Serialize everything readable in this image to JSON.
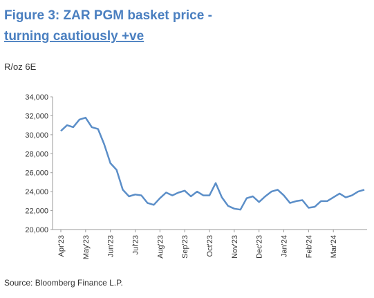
{
  "chart_data": {
    "type": "line",
    "title": "Figure 3: ZAR PGM basket price -",
    "title_emphasis": "turning cautiously +ve",
    "y_label": "R/oz 6E",
    "source": "Source: Bloomberg Finance L.P.",
    "categories": [
      "Apr'23",
      null,
      null,
      null,
      "May'23",
      null,
      null,
      null,
      "Jun'23",
      null,
      null,
      null,
      "Jul'23",
      null,
      null,
      null,
      "Aug'23",
      null,
      null,
      null,
      "Sep'23",
      null,
      null,
      null,
      "Oct'23",
      null,
      null,
      null,
      "Nov'23",
      null,
      null,
      null,
      "Dec'23",
      null,
      null,
      null,
      "Jan'24",
      null,
      null,
      null,
      "Feb'24",
      null,
      null,
      null,
      "Mar'24",
      null,
      null,
      null,
      null,
      null
    ],
    "series": [
      {
        "name": "ZAR PGM basket price",
        "color": "#5b8ec8",
        "values": [
          30400,
          31000,
          30800,
          31600,
          31800,
          30800,
          30600,
          29000,
          27000,
          26300,
          24200,
          23500,
          23700,
          23600,
          22800,
          22600,
          23300,
          23900,
          23600,
          23900,
          24100,
          23500,
          24000,
          23600,
          23600,
          24900,
          23400,
          22500,
          22200,
          22100,
          23300,
          23500,
          22900,
          23500,
          24000,
          24200,
          23600,
          22800,
          23000,
          23100,
          22300,
          22400,
          23000,
          23000,
          23400,
          23800,
          23400,
          23600,
          24000,
          24200
        ]
      }
    ],
    "ylim": [
      20000,
      34000
    ],
    "yticks": [
      {
        "value": 20000,
        "label": "20,000"
      },
      {
        "value": 22000,
        "label": "22,000"
      },
      {
        "value": 24000,
        "label": "24,000"
      },
      {
        "value": 26000,
        "label": "26,000"
      },
      {
        "value": 28000,
        "label": "28,000"
      },
      {
        "value": 30000,
        "label": "30,000"
      },
      {
        "value": 32000,
        "label": "32,000"
      },
      {
        "value": 34000,
        "label": "34,000"
      }
    ],
    "grid": false
  }
}
